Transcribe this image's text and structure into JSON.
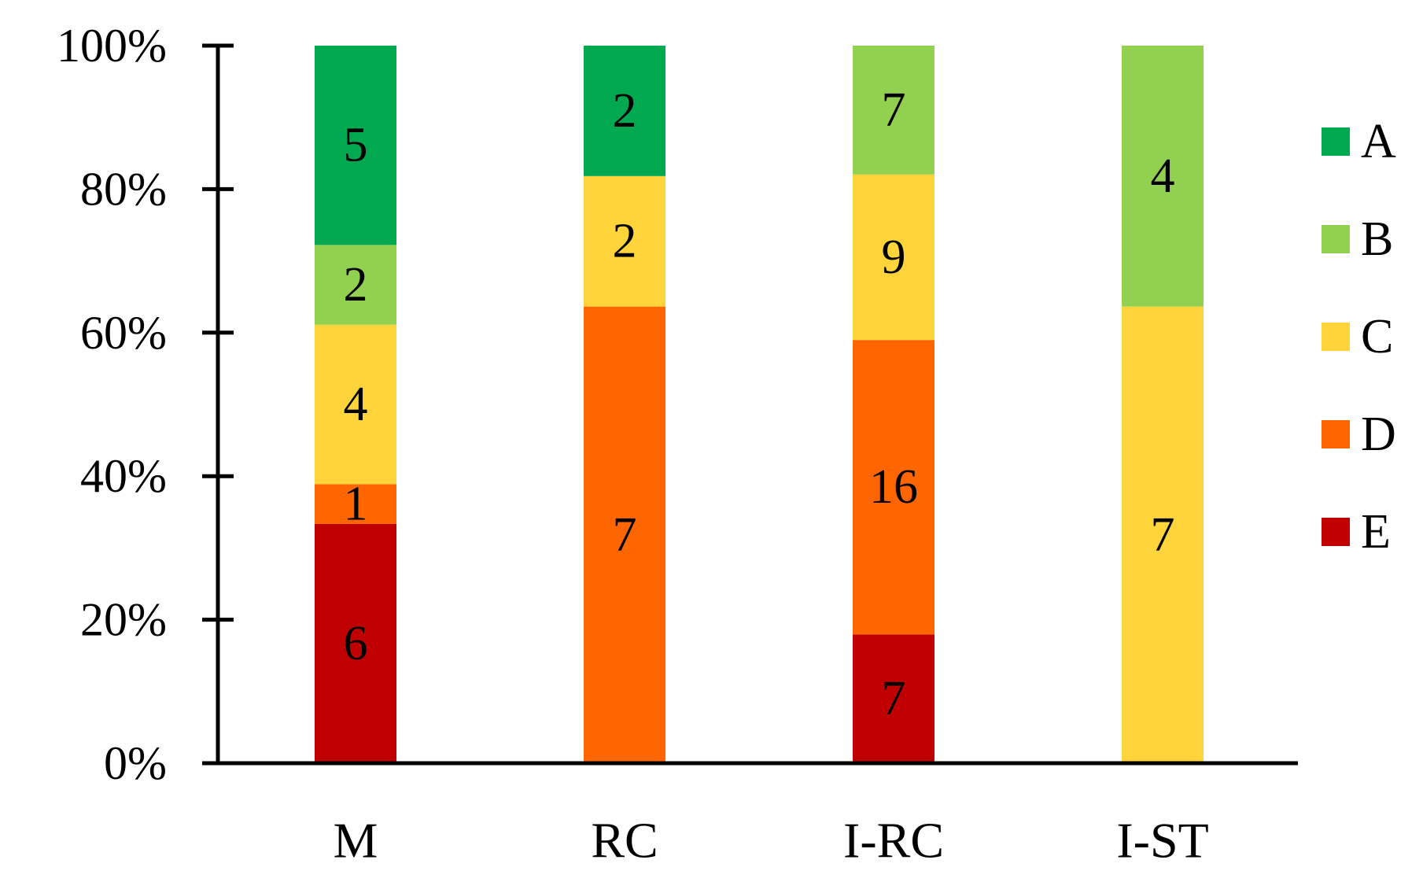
{
  "chart_data": {
    "type": "bar",
    "stacked": true,
    "normalized_percent": true,
    "categories": [
      "M",
      "RC",
      "I-RC",
      "I-ST"
    ],
    "series": [
      {
        "name": "E",
        "color": "#c00000",
        "values": [
          6,
          0,
          7,
          0
        ]
      },
      {
        "name": "D",
        "color": "#ff6600",
        "values": [
          1,
          7,
          16,
          0
        ]
      },
      {
        "name": "C",
        "color": "#ffd43b",
        "values": [
          4,
          2,
          9,
          7
        ]
      },
      {
        "name": "B",
        "color": "#92d050",
        "values": [
          2,
          0,
          7,
          4
        ]
      },
      {
        "name": "A",
        "color": "#00a84f",
        "values": [
          5,
          2,
          0,
          0
        ]
      }
    ],
    "legend_order": [
      "A",
      "B",
      "C",
      "D",
      "E"
    ],
    "legend_position": "right",
    "ylim": [
      0,
      100
    ],
    "yticks": [
      0,
      20,
      40,
      60,
      80,
      100
    ],
    "ytick_labels": [
      "0%",
      "20%",
      "40%",
      "60%",
      "80%",
      "100%"
    ],
    "grid": false,
    "title": "",
    "xlabel": "",
    "ylabel": ""
  }
}
